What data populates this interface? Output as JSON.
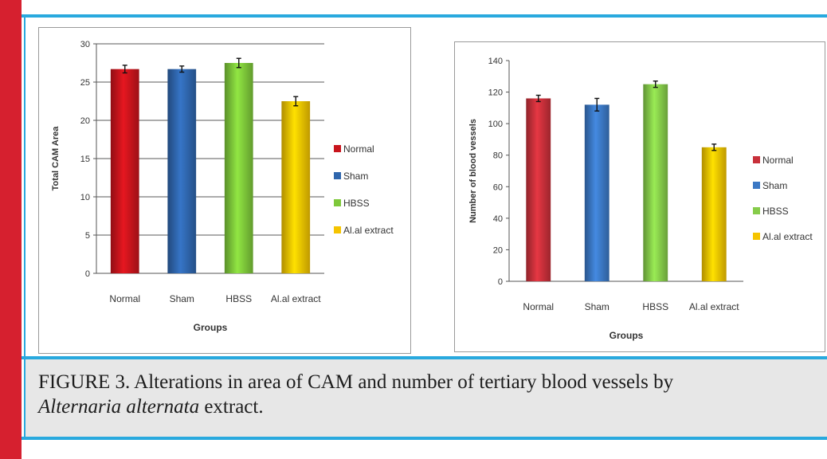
{
  "caption": {
    "prefix": "FIGURE 3. Alterations in area of CAM and number of  tertiary blood vessels  by",
    "species": "Alternaria alternata",
    "suffix": " extract."
  },
  "colors": {
    "page_bar": "#d6202f",
    "rule": "#29a9de",
    "caption_bg": "#e7e7e7"
  },
  "chart_data": [
    {
      "type": "bar",
      "title": "",
      "xlabel": "Groups",
      "ylabel": "Total CAM Area",
      "categories": [
        "Normal",
        "Sham",
        "HBSS",
        "Al.al extract"
      ],
      "values": [
        26.7,
        26.7,
        27.5,
        22.5
      ],
      "errors": [
        0.5,
        0.4,
        0.6,
        0.6
      ],
      "colors": [
        "#c8141c",
        "#2f66ad",
        "#7ec83a",
        "#f5c400"
      ],
      "ylim": [
        0,
        30
      ],
      "yticks": [
        0,
        5,
        10,
        15,
        20,
        25,
        30
      ],
      "grid": true,
      "legend": "right",
      "legend_labels": [
        "Normal",
        "Sham",
        "HBSS",
        "Al.al extract"
      ]
    },
    {
      "type": "bar",
      "title": "",
      "xlabel": "Groups",
      "ylabel": "Number of blood vessels",
      "categories": [
        "Normal",
        "Sham",
        "HBSS",
        "Al.al extract"
      ],
      "values": [
        116,
        112,
        125,
        85
      ],
      "errors": [
        2,
        4,
        2,
        2
      ],
      "colors": [
        "#c8303a",
        "#3b78c4",
        "#86cc4a",
        "#f5c400"
      ],
      "ylim": [
        0,
        140
      ],
      "yticks": [
        0,
        20,
        40,
        60,
        80,
        100,
        120,
        140
      ],
      "grid": false,
      "legend": "right",
      "legend_labels": [
        "Normal",
        "Sham",
        "HBSS",
        "Al.al extract"
      ]
    }
  ]
}
